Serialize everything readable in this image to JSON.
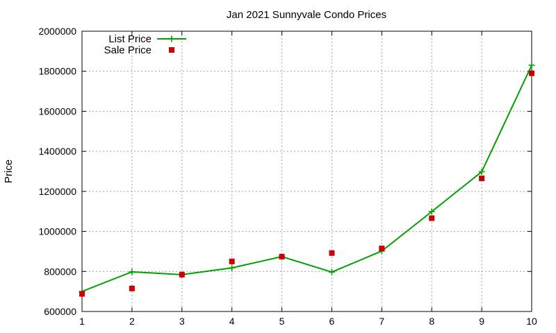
{
  "chart_data": {
    "type": "line",
    "title": "Jan 2021 Sunnyvale Condo Prices",
    "xlabel": "",
    "ylabel": "Price",
    "xlim": [
      1,
      10
    ],
    "ylim": [
      600000,
      2000000
    ],
    "x_ticks": [
      1,
      2,
      3,
      4,
      5,
      6,
      7,
      8,
      9,
      10
    ],
    "y_ticks": [
      600000,
      800000,
      1000000,
      1200000,
      1400000,
      1600000,
      1800000,
      2000000
    ],
    "grid": true,
    "legend_position": "top-left",
    "x": [
      1,
      2,
      3,
      4,
      5,
      6,
      7,
      8,
      9,
      10
    ],
    "series": [
      {
        "name": "List Price",
        "style": "line-plus",
        "color": "#00a000",
        "values": [
          700000,
          798000,
          784000,
          818000,
          874000,
          797000,
          902000,
          1099000,
          1298000,
          1830000
        ]
      },
      {
        "name": "Sale Price",
        "style": "square",
        "color": "#cc0000",
        "values": [
          688000,
          715000,
          784000,
          850000,
          874000,
          892000,
          915000,
          1066000,
          1265000,
          1790000
        ]
      }
    ]
  }
}
